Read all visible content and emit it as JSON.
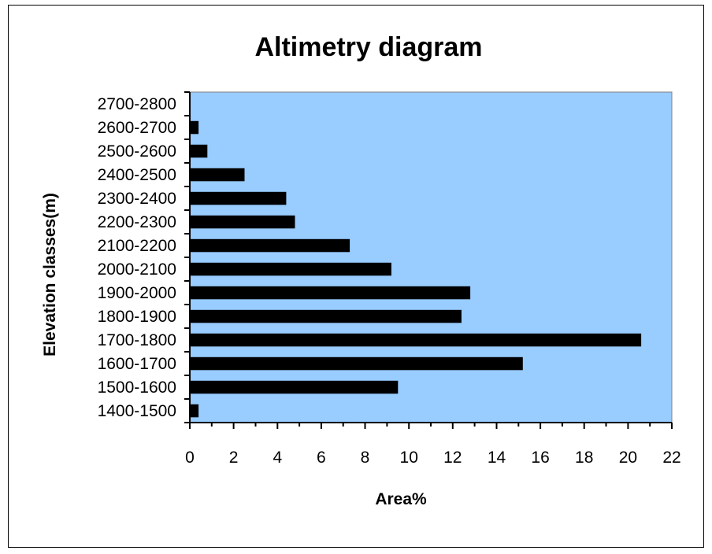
{
  "chart_data": {
    "type": "bar",
    "orientation": "horizontal",
    "title": "Altimetry diagram",
    "xlabel": "Area%",
    "ylabel": "Elevation classes(m)",
    "categories": [
      "1400-1500",
      "1500-1600",
      "1600-1700",
      "1700-1800",
      "1800-1900",
      "1900-2000",
      "2000-2100",
      "2100-2200",
      "2200-2300",
      "2300-2400",
      "2400-2500",
      "2500-2600",
      "2600-2700",
      "2700-2800"
    ],
    "values": [
      0.4,
      9.5,
      15.2,
      20.6,
      12.4,
      12.8,
      9.2,
      7.3,
      4.8,
      4.4,
      2.5,
      0.8,
      0.4,
      0.0
    ],
    "xlim": [
      0,
      22
    ],
    "xticks": [
      0,
      2,
      4,
      6,
      8,
      10,
      12,
      14,
      16,
      18,
      20,
      22
    ],
    "grid": false,
    "legend": "none",
    "colors": {
      "plot_background": "#99ccff",
      "bar": "#000000"
    }
  }
}
